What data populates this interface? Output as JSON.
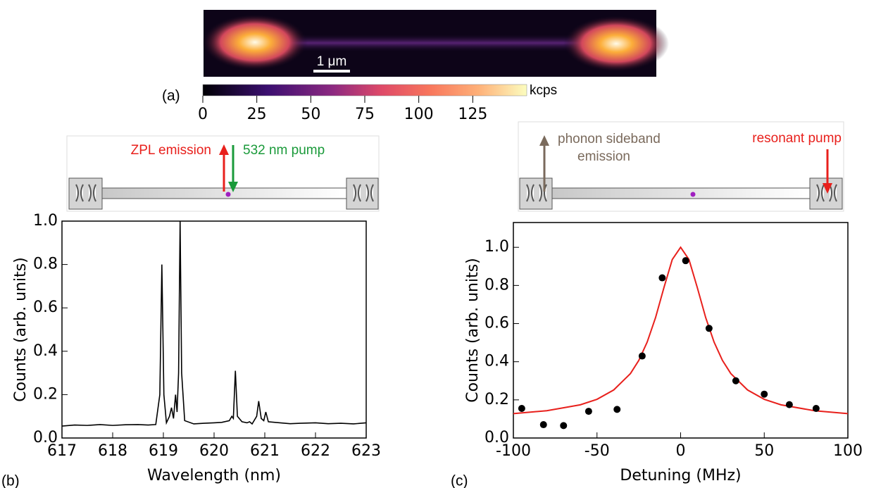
{
  "chart_data": [
    {
      "type": "heatmap",
      "panel_label": "(a)",
      "scale_bar": "1 μm",
      "colorbar_label": "kcps",
      "clim": [
        0,
        150
      ],
      "cticks": [
        0,
        25,
        50,
        75,
        100,
        125
      ]
    },
    {
      "type": "line",
      "panel_label": "(b)",
      "xlabel": "Wavelength (nm)",
      "ylabel": "Counts (arb. units)",
      "annotations": [
        {
          "text": "ZPL emission",
          "color": "#e8201c"
        },
        {
          "text": "532 nm pump",
          "color": "#1a9a3a"
        }
      ],
      "xlim": [
        617,
        623
      ],
      "xticks": [
        617,
        618,
        619,
        620,
        621,
        622,
        623
      ],
      "ylim": [
        0,
        1.0
      ],
      "yticks": [
        {
          "value": 0,
          "label": "0.0"
        },
        0.2,
        0.4,
        0.6,
        0.8,
        {
          "value": 1,
          "label": "1.0"
        }
      ],
      "x": [
        617.0,
        617.25,
        617.5,
        617.75,
        618.0,
        618.25,
        618.5,
        618.7,
        618.85,
        618.93,
        618.97,
        619.01,
        619.06,
        619.12,
        619.16,
        619.2,
        619.24,
        619.27,
        619.3,
        619.33,
        619.36,
        619.42,
        619.6,
        619.8,
        620.0,
        620.15,
        620.3,
        620.35,
        620.38,
        620.42,
        620.46,
        620.55,
        620.65,
        620.7,
        620.75,
        620.84,
        620.88,
        620.93,
        620.98,
        621.02,
        621.07,
        621.3,
        621.5,
        621.7,
        622.0,
        622.25,
        622.5,
        622.75,
        623.0
      ],
      "series": [
        {
          "color": "#000000",
          "values": [
            0.055,
            0.06,
            0.058,
            0.062,
            0.058,
            0.061,
            0.062,
            0.06,
            0.062,
            0.2,
            0.8,
            0.2,
            0.07,
            0.1,
            0.14,
            0.09,
            0.2,
            0.12,
            0.3,
            1.0,
            0.3,
            0.08,
            0.065,
            0.068,
            0.07,
            0.072,
            0.08,
            0.1,
            0.09,
            0.31,
            0.1,
            0.075,
            0.07,
            0.075,
            0.065,
            0.1,
            0.17,
            0.09,
            0.08,
            0.12,
            0.075,
            0.07,
            0.066,
            0.068,
            0.07,
            0.066,
            0.068,
            0.065,
            0.07
          ]
        }
      ]
    },
    {
      "type": "scatter",
      "panel_label": "(c)",
      "xlabel": "Detuning (MHz)",
      "ylabel": "Counts (arb. units)",
      "annotations": [
        {
          "text": "phonon sideband",
          "color": "#7a6a5c"
        },
        {
          "text": "emission",
          "color": "#7a6a5c"
        },
        {
          "text": "resonant pump",
          "color": "#e8201c"
        }
      ],
      "xlim": [
        -100,
        100
      ],
      "xticks": [
        -100,
        -50,
        0,
        50,
        100
      ],
      "ylim": [
        0,
        1.13
      ],
      "yticks": [
        {
          "value": 0,
          "label": "0.0"
        },
        0.2,
        0.4,
        0.6,
        0.8,
        {
          "value": 1,
          "label": "1.0"
        }
      ],
      "series": [
        {
          "color": "#000000",
          "x": [
            -95,
            -82,
            -70,
            -55,
            -38,
            -23,
            -11,
            3,
            17,
            33,
            50,
            65,
            81
          ],
          "values": [
            0.155,
            0.07,
            0.065,
            0.14,
            0.15,
            0.43,
            0.84,
            0.93,
            0.575,
            0.3,
            0.23,
            0.175,
            0.155
          ]
        },
        {
          "color": "#e8201c",
          "x": [
            -100,
            -80,
            -60,
            -50,
            -40,
            -30,
            -25,
            -20,
            -15,
            -10,
            -5,
            0,
            5,
            10,
            15,
            20,
            25,
            30,
            40,
            50,
            60,
            80,
            100
          ],
          "values": [
            0.128,
            0.143,
            0.174,
            0.203,
            0.252,
            0.338,
            0.407,
            0.503,
            0.631,
            0.788,
            0.936,
            1.0,
            0.936,
            0.788,
            0.631,
            0.503,
            0.407,
            0.338,
            0.252,
            0.203,
            0.174,
            0.143,
            0.128
          ]
        }
      ]
    }
  ]
}
